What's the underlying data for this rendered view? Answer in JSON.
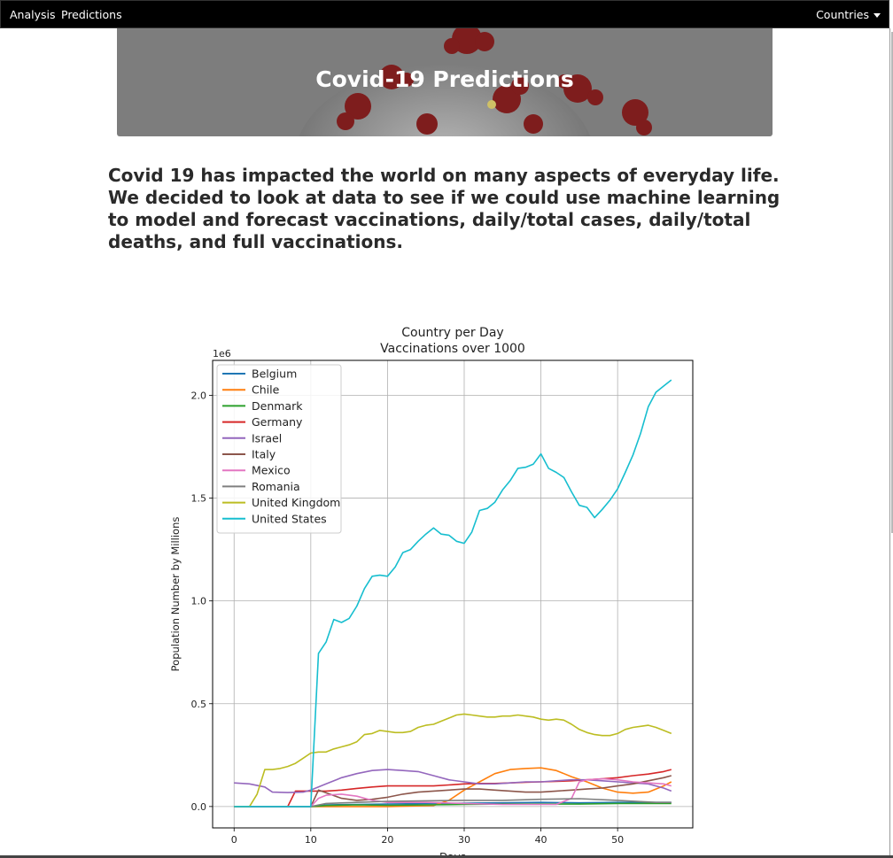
{
  "nav": {
    "analysis": "Analysis",
    "predictions": "Predictions",
    "countries": "Countries"
  },
  "hero": {
    "title": "Covid-19 Predictions"
  },
  "intro": "Covid 19 has impacted the world on many aspects of everyday life. We decided to look at data to see if we could use machine learning to model and forecast vaccinations, daily/total cases, daily/total deaths, and full vaccinations.",
  "chart_data": {
    "type": "line",
    "title": "Country per Day",
    "subtitle": "Vaccinations over 1000",
    "xlabel": "Days",
    "ylabel": "Population Number by Millions",
    "y_offset_label": "1e6",
    "xlim": [
      -2.8,
      59.8
    ],
    "ylim": [
      -0.104,
      2.17
    ],
    "xticks": [
      0,
      10,
      20,
      30,
      40,
      50
    ],
    "yticks": [
      0.0,
      0.5,
      1.0,
      1.5,
      2.0
    ],
    "ytick_labels": [
      "0.0",
      "0.5",
      "1.0",
      "1.5",
      "2.0"
    ],
    "grid": true,
    "legend_position": "upper-left",
    "series": [
      {
        "name": "Belgium",
        "color": "#1f77b4",
        "points": [
          [
            0,
            0
          ],
          [
            6,
            0
          ],
          [
            10,
            0
          ],
          [
            12,
            0.008
          ],
          [
            16,
            0.01
          ],
          [
            20,
            0.012
          ],
          [
            25,
            0.014
          ],
          [
            30,
            0.016
          ],
          [
            35,
            0.018
          ],
          [
            40,
            0.02
          ],
          [
            45,
            0.018
          ],
          [
            50,
            0.02
          ],
          [
            57,
            0.02
          ]
        ]
      },
      {
        "name": "Chile",
        "color": "#ff7f0e",
        "points": [
          [
            0,
            0
          ],
          [
            10,
            0
          ],
          [
            20,
            0
          ],
          [
            26,
            0.005
          ],
          [
            28,
            0.03
          ],
          [
            30,
            0.08
          ],
          [
            32,
            0.12
          ],
          [
            34,
            0.16
          ],
          [
            36,
            0.18
          ],
          [
            38,
            0.185
          ],
          [
            40,
            0.188
          ],
          [
            42,
            0.175
          ],
          [
            44,
            0.145
          ],
          [
            46,
            0.12
          ],
          [
            48,
            0.09
          ],
          [
            50,
            0.07
          ],
          [
            52,
            0.065
          ],
          [
            54,
            0.07
          ],
          [
            56,
            0.1
          ],
          [
            57,
            0.12
          ]
        ]
      },
      {
        "name": "Denmark",
        "color": "#2ca02c",
        "points": [
          [
            0,
            0
          ],
          [
            10,
            0
          ],
          [
            12,
            0.005
          ],
          [
            16,
            0.008
          ],
          [
            20,
            0.006
          ],
          [
            25,
            0.008
          ],
          [
            30,
            0.01
          ],
          [
            35,
            0.012
          ],
          [
            40,
            0.012
          ],
          [
            45,
            0.012
          ],
          [
            50,
            0.015
          ],
          [
            57,
            0.015
          ]
        ]
      },
      {
        "name": "Germany",
        "color": "#d62728",
        "points": [
          [
            0,
            0
          ],
          [
            7,
            0
          ],
          [
            8,
            0.075
          ],
          [
            10,
            0.075
          ],
          [
            12,
            0.075
          ],
          [
            14,
            0.08
          ],
          [
            16,
            0.088
          ],
          [
            18,
            0.095
          ],
          [
            20,
            0.1
          ],
          [
            22,
            0.1
          ],
          [
            24,
            0.1
          ],
          [
            26,
            0.1
          ],
          [
            28,
            0.105
          ],
          [
            30,
            0.11
          ],
          [
            32,
            0.112
          ],
          [
            34,
            0.112
          ],
          [
            36,
            0.115
          ],
          [
            38,
            0.118
          ],
          [
            40,
            0.12
          ],
          [
            42,
            0.122
          ],
          [
            44,
            0.125
          ],
          [
            46,
            0.13
          ],
          [
            48,
            0.135
          ],
          [
            50,
            0.14
          ],
          [
            52,
            0.15
          ],
          [
            54,
            0.158
          ],
          [
            56,
            0.17
          ],
          [
            57,
            0.18
          ]
        ]
      },
      {
        "name": "Israel",
        "color": "#9467bd",
        "points": [
          [
            0,
            0.115
          ],
          [
            2,
            0.11
          ],
          [
            4,
            0.095
          ],
          [
            5,
            0.07
          ],
          [
            7,
            0.068
          ],
          [
            9,
            0.07
          ],
          [
            10,
            0.08
          ],
          [
            12,
            0.11
          ],
          [
            14,
            0.14
          ],
          [
            16,
            0.16
          ],
          [
            18,
            0.175
          ],
          [
            20,
            0.18
          ],
          [
            22,
            0.175
          ],
          [
            24,
            0.17
          ],
          [
            26,
            0.15
          ],
          [
            28,
            0.13
          ],
          [
            30,
            0.12
          ],
          [
            32,
            0.11
          ],
          [
            34,
            0.11
          ],
          [
            36,
            0.115
          ],
          [
            38,
            0.12
          ],
          [
            40,
            0.12
          ],
          [
            42,
            0.125
          ],
          [
            44,
            0.13
          ],
          [
            46,
            0.13
          ],
          [
            48,
            0.125
          ],
          [
            50,
            0.12
          ],
          [
            52,
            0.115
          ],
          [
            54,
            0.11
          ],
          [
            56,
            0.09
          ],
          [
            57,
            0.075
          ]
        ]
      },
      {
        "name": "Italy",
        "color": "#8c564b",
        "points": [
          [
            0,
            0
          ],
          [
            8,
            0
          ],
          [
            10,
            0
          ],
          [
            11,
            0.08
          ],
          [
            14,
            0.04
          ],
          [
            16,
            0.03
          ],
          [
            18,
            0.035
          ],
          [
            20,
            0.045
          ],
          [
            22,
            0.06
          ],
          [
            24,
            0.07
          ],
          [
            26,
            0.075
          ],
          [
            28,
            0.08
          ],
          [
            30,
            0.085
          ],
          [
            32,
            0.085
          ],
          [
            34,
            0.08
          ],
          [
            36,
            0.075
          ],
          [
            38,
            0.07
          ],
          [
            40,
            0.07
          ],
          [
            42,
            0.075
          ],
          [
            44,
            0.08
          ],
          [
            46,
            0.085
          ],
          [
            48,
            0.09
          ],
          [
            50,
            0.1
          ],
          [
            52,
            0.11
          ],
          [
            54,
            0.125
          ],
          [
            56,
            0.14
          ],
          [
            57,
            0.15
          ]
        ]
      },
      {
        "name": "Mexico",
        "color": "#e377c2",
        "points": [
          [
            0,
            0
          ],
          [
            10,
            0
          ],
          [
            11,
            0.04
          ],
          [
            12,
            0.055
          ],
          [
            14,
            0.06
          ],
          [
            16,
            0.05
          ],
          [
            18,
            0.03
          ],
          [
            20,
            0.02
          ],
          [
            25,
            0.02
          ],
          [
            30,
            0.015
          ],
          [
            35,
            0.01
          ],
          [
            40,
            0.01
          ],
          [
            42,
            0.01
          ],
          [
            44,
            0.04
          ],
          [
            45,
            0.12
          ],
          [
            46,
            0.13
          ],
          [
            48,
            0.135
          ],
          [
            50,
            0.13
          ],
          [
            52,
            0.12
          ],
          [
            54,
            0.115
          ],
          [
            56,
            0.11
          ],
          [
            57,
            0.1
          ]
        ]
      },
      {
        "name": "Romania",
        "color": "#7f7f7f",
        "points": [
          [
            0,
            0
          ],
          [
            10,
            0
          ],
          [
            12,
            0.015
          ],
          [
            16,
            0.02
          ],
          [
            20,
            0.025
          ],
          [
            25,
            0.028
          ],
          [
            30,
            0.03
          ],
          [
            35,
            0.03
          ],
          [
            40,
            0.035
          ],
          [
            45,
            0.038
          ],
          [
            50,
            0.03
          ],
          [
            55,
            0.02
          ],
          [
            57,
            0.02
          ]
        ]
      },
      {
        "name": "United Kingdom",
        "color": "#bcbd22",
        "points": [
          [
            0,
            0
          ],
          [
            2,
            0
          ],
          [
            3,
            0.06
          ],
          [
            4,
            0.18
          ],
          [
            5,
            0.18
          ],
          [
            6,
            0.185
          ],
          [
            7,
            0.195
          ],
          [
            8,
            0.21
          ],
          [
            9,
            0.235
          ],
          [
            10,
            0.26
          ],
          [
            11,
            0.265
          ],
          [
            12,
            0.265
          ],
          [
            13,
            0.28
          ],
          [
            14,
            0.29
          ],
          [
            15,
            0.3
          ],
          [
            16,
            0.315
          ],
          [
            17,
            0.35
          ],
          [
            18,
            0.355
          ],
          [
            19,
            0.37
          ],
          [
            20,
            0.365
          ],
          [
            21,
            0.36
          ],
          [
            22,
            0.36
          ],
          [
            23,
            0.365
          ],
          [
            24,
            0.385
          ],
          [
            25,
            0.395
          ],
          [
            26,
            0.4
          ],
          [
            27,
            0.415
          ],
          [
            28,
            0.43
          ],
          [
            29,
            0.445
          ],
          [
            30,
            0.45
          ],
          [
            31,
            0.445
          ],
          [
            32,
            0.44
          ],
          [
            33,
            0.435
          ],
          [
            34,
            0.435
          ],
          [
            35,
            0.44
          ],
          [
            36,
            0.44
          ],
          [
            37,
            0.445
          ],
          [
            38,
            0.44
          ],
          [
            39,
            0.435
          ],
          [
            40,
            0.425
          ],
          [
            41,
            0.42
          ],
          [
            42,
            0.425
          ],
          [
            43,
            0.42
          ],
          [
            44,
            0.4
          ],
          [
            45,
            0.375
          ],
          [
            46,
            0.36
          ],
          [
            47,
            0.35
          ],
          [
            48,
            0.345
          ],
          [
            49,
            0.345
          ],
          [
            50,
            0.355
          ],
          [
            51,
            0.375
          ],
          [
            52,
            0.385
          ],
          [
            53,
            0.39
          ],
          [
            54,
            0.395
          ],
          [
            55,
            0.385
          ],
          [
            56,
            0.37
          ],
          [
            57,
            0.355
          ]
        ]
      },
      {
        "name": "United States",
        "color": "#17becf",
        "points": [
          [
            0,
            0
          ],
          [
            10,
            0
          ],
          [
            11,
            0.745
          ],
          [
            12,
            0.8
          ],
          [
            13,
            0.91
          ],
          [
            14,
            0.895
          ],
          [
            15,
            0.915
          ],
          [
            16,
            0.975
          ],
          [
            17,
            1.06
          ],
          [
            18,
            1.12
          ],
          [
            19,
            1.125
          ],
          [
            20,
            1.12
          ],
          [
            21,
            1.165
          ],
          [
            22,
            1.235
          ],
          [
            23,
            1.25
          ],
          [
            24,
            1.29
          ],
          [
            25,
            1.325
          ],
          [
            26,
            1.355
          ],
          [
            27,
            1.325
          ],
          [
            28,
            1.32
          ],
          [
            29,
            1.29
          ],
          [
            30,
            1.28
          ],
          [
            31,
            1.335
          ],
          [
            32,
            1.44
          ],
          [
            33,
            1.45
          ],
          [
            34,
            1.48
          ],
          [
            35,
            1.54
          ],
          [
            36,
            1.585
          ],
          [
            37,
            1.645
          ],
          [
            38,
            1.65
          ],
          [
            39,
            1.665
          ],
          [
            40,
            1.715
          ],
          [
            41,
            1.645
          ],
          [
            42,
            1.625
          ],
          [
            43,
            1.6
          ],
          [
            44,
            1.53
          ],
          [
            45,
            1.465
          ],
          [
            46,
            1.455
          ],
          [
            47,
            1.405
          ],
          [
            48,
            1.445
          ],
          [
            49,
            1.49
          ],
          [
            50,
            1.545
          ],
          [
            51,
            1.625
          ],
          [
            52,
            1.71
          ],
          [
            53,
            1.815
          ],
          [
            54,
            1.945
          ],
          [
            55,
            2.015
          ],
          [
            56,
            2.045
          ],
          [
            57,
            2.075
          ]
        ]
      }
    ]
  }
}
